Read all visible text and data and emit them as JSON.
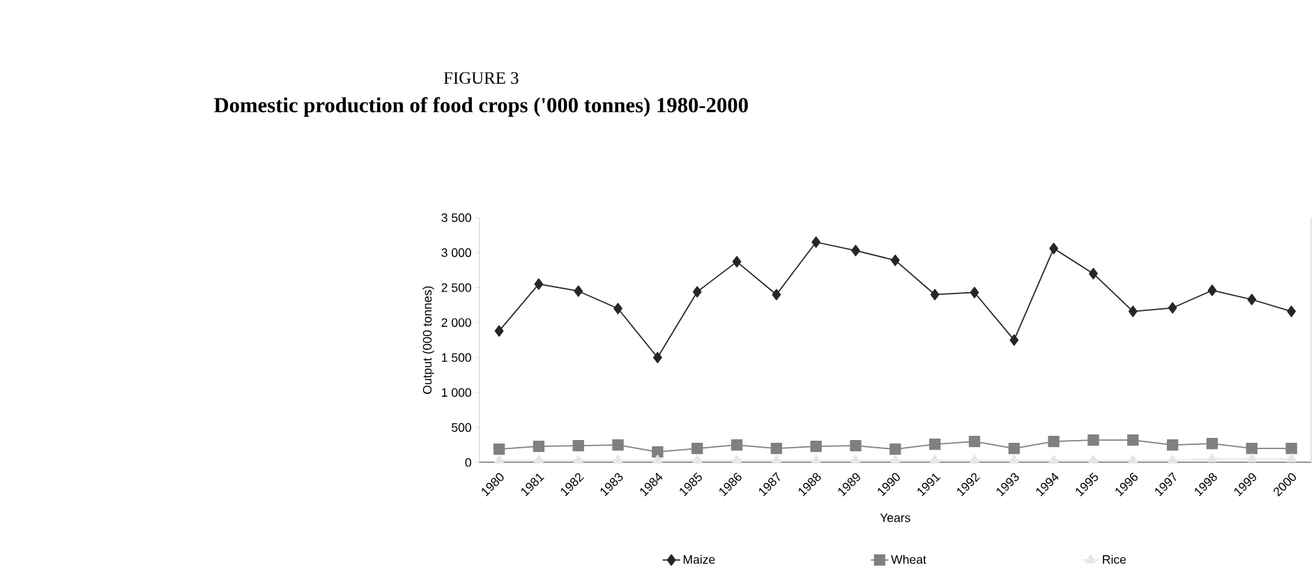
{
  "chart_data": {
    "type": "line",
    "title": "Domestic production of food crops ('000 tonnes) 1980-2000",
    "subtitle": "FIGURE 3",
    "xlabel": "Years",
    "ylabel": "Output  (000 tonnes)",
    "categories": [
      "1980",
      "1981",
      "1982",
      "1983",
      "1984",
      "1985",
      "1986",
      "1987",
      "1988",
      "1989",
      "1990",
      "1991",
      "1992",
      "1993",
      "1994",
      "1995",
      "1996",
      "1997",
      "1998",
      "1999",
      "2000"
    ],
    "series": [
      {
        "name": "Maize",
        "color": "#262626",
        "marker": "diamond",
        "values": [
          1880,
          2550,
          2450,
          2200,
          1500,
          2440,
          2870,
          2400,
          3150,
          3030,
          2890,
          2400,
          2430,
          1750,
          3060,
          2700,
          2160,
          2210,
          2460,
          2330,
          2160
        ]
      },
      {
        "name": "Wheat",
        "color": "#808080",
        "marker": "square",
        "values": [
          190,
          230,
          240,
          250,
          150,
          200,
          250,
          200,
          230,
          240,
          190,
          260,
          300,
          200,
          300,
          320,
          320,
          250,
          270,
          200,
          200
        ]
      },
      {
        "name": "Rice",
        "color": "#e6e6e6",
        "marker": "triangle",
        "values": [
          30,
          30,
          30,
          30,
          30,
          30,
          30,
          30,
          30,
          30,
          30,
          30,
          30,
          30,
          30,
          30,
          30,
          30,
          50,
          50,
          50
        ]
      }
    ],
    "ylim": [
      0,
      3500
    ],
    "yticks": [
      {
        "value": 0,
        "label": "0"
      },
      {
        "value": 500,
        "label": "500"
      },
      {
        "value": 1000,
        "label": "1 000"
      },
      {
        "value": 1500,
        "label": "1 500"
      },
      {
        "value": 2000,
        "label": "2 000"
      },
      {
        "value": 2500,
        "label": "2 500"
      },
      {
        "value": 3000,
        "label": "3 000"
      },
      {
        "value": 3500,
        "label": "3 500"
      }
    ],
    "grid": false,
    "legend": "bottom",
    "line_style": "solid"
  }
}
